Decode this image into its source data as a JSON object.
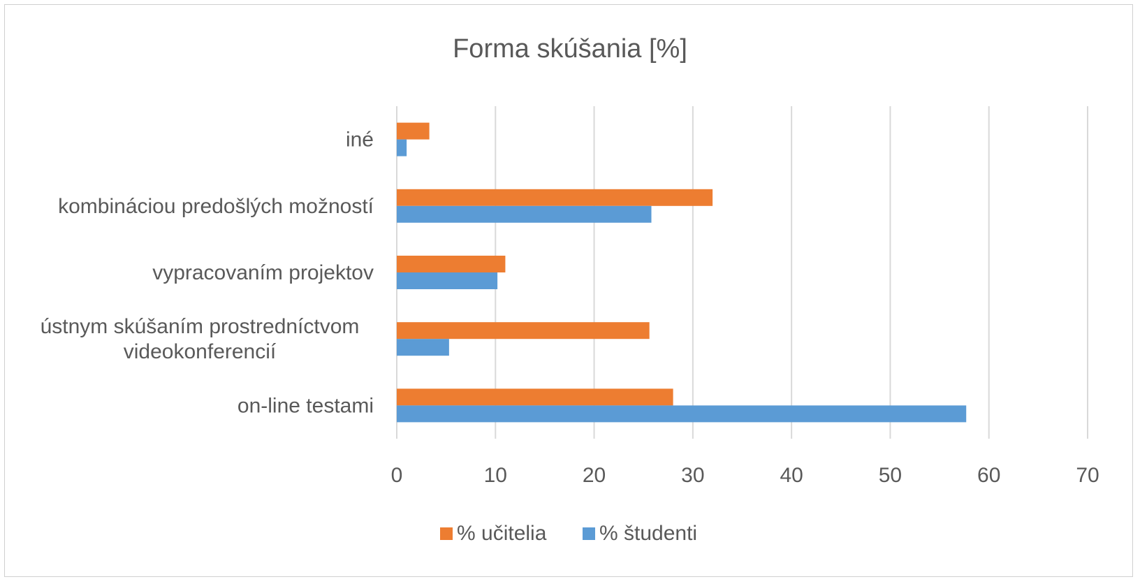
{
  "chart_data": {
    "type": "bar",
    "orientation": "horizontal",
    "title": "Forma skúšania [%]",
    "xlabel": "",
    "ylabel": "",
    "xlim": [
      0,
      70
    ],
    "x_ticks": [
      0,
      10,
      20,
      30,
      40,
      50,
      60,
      70
    ],
    "grid": true,
    "legend_position": "bottom",
    "categories": [
      [
        "on-line testami"
      ],
      [
        "ústnym skúšaním prostredníctvom",
        "videokonferencií"
      ],
      [
        "vypracovaním projektov"
      ],
      [
        "kombináciou predošlých možností"
      ],
      [
        "iné"
      ]
    ],
    "series": [
      {
        "name": "% študenti",
        "color": "#5b9bd5",
        "values": [
          57.7,
          5.3,
          10.2,
          25.8,
          1.0
        ]
      },
      {
        "name": "% učitelia",
        "color": "#ed7d31",
        "values": [
          28.0,
          25.6,
          11.0,
          32.0,
          3.3
        ]
      }
    ],
    "legend_order": [
      "% učitelia",
      "% študenti"
    ]
  }
}
